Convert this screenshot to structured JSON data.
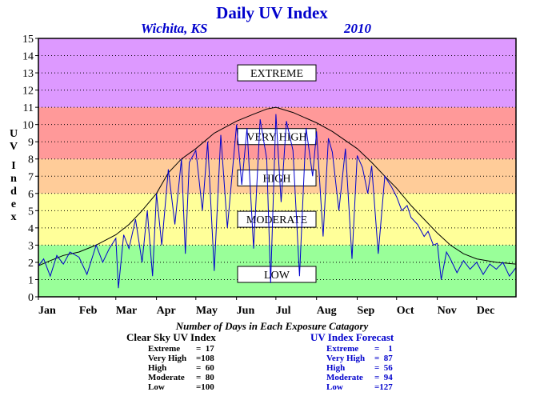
{
  "header": {
    "title": "Daily UV Index",
    "location": "Wichita, KS",
    "year": "2010"
  },
  "y_axis_label": "UV Index",
  "chart_data": {
    "type": "line",
    "ylim": [
      0,
      15
    ],
    "yticks": [
      0,
      1,
      2,
      3,
      4,
      5,
      6,
      7,
      8,
      9,
      10,
      11,
      12,
      13,
      14,
      15
    ],
    "xlim": [
      1,
      365
    ],
    "xticks": [
      {
        "day": 1,
        "label": "Jan"
      },
      {
        "day": 32,
        "label": "Feb"
      },
      {
        "day": 60,
        "label": "Mar"
      },
      {
        "day": 91,
        "label": "Apr"
      },
      {
        "day": 121,
        "label": "May"
      },
      {
        "day": 152,
        "label": "Jun"
      },
      {
        "day": 182,
        "label": "Jul"
      },
      {
        "day": 213,
        "label": "Aug"
      },
      {
        "day": 244,
        "label": "Sep"
      },
      {
        "day": 274,
        "label": "Oct"
      },
      {
        "day": 305,
        "label": "Nov"
      },
      {
        "day": 335,
        "label": "Dec"
      }
    ],
    "grid": "horizontal-dotted",
    "bands": [
      {
        "label": "LOW",
        "from": 0,
        "to": 3,
        "color": "#99ff99"
      },
      {
        "label": "MODERATE",
        "from": 3,
        "to": 6,
        "color": "#ffff99"
      },
      {
        "label": "HIGH",
        "from": 6,
        "to": 8,
        "color": "#ffcc99"
      },
      {
        "label": "VERY HIGH",
        "from": 8,
        "to": 11,
        "color": "#ff9999"
      },
      {
        "label": "EXTREME",
        "from": 11,
        "to": 15,
        "color": "#dd99ff"
      }
    ],
    "series": [
      {
        "name": "Clear Sky UV Index",
        "color": "#000000",
        "x": [
          1,
          10,
          20,
          32,
          45,
          60,
          70,
          80,
          91,
          100,
          110,
          121,
          135,
          152,
          165,
          175,
          182,
          195,
          213,
          225,
          244,
          255,
          265,
          274,
          285,
          295,
          305,
          315,
          325,
          335,
          350,
          365
        ],
        "y": [
          1.8,
          2.1,
          2.4,
          2.6,
          3.0,
          3.6,
          4.2,
          5.0,
          6.0,
          7.2,
          8.0,
          8.6,
          9.5,
          10.2,
          10.6,
          10.9,
          11.0,
          10.7,
          10.1,
          9.6,
          8.6,
          7.8,
          7.0,
          6.3,
          5.3,
          4.5,
          3.7,
          3.0,
          2.5,
          2.2,
          2.0,
          1.9
        ]
      },
      {
        "name": "UV Index Forecast",
        "color": "#0000cc",
        "x": [
          1,
          5,
          10,
          15,
          20,
          25,
          32,
          38,
          45,
          50,
          55,
          60,
          62,
          66,
          70,
          75,
          80,
          84,
          88,
          91,
          95,
          100,
          105,
          110,
          113,
          116,
          121,
          126,
          130,
          135,
          140,
          145,
          152,
          156,
          160,
          165,
          170,
          175,
          178,
          182,
          186,
          190,
          195,
          200,
          205,
          210,
          213,
          218,
          222,
          225,
          230,
          235,
          240,
          244,
          248,
          252,
          255,
          260,
          265,
          270,
          274,
          278,
          282,
          285,
          290,
          295,
          298,
          302,
          305,
          308,
          312,
          315,
          320,
          325,
          330,
          335,
          340,
          345,
          350,
          355,
          360,
          365
        ],
        "y": [
          1.8,
          2.2,
          1.2,
          2.4,
          1.9,
          2.6,
          2.3,
          1.3,
          3.0,
          2.0,
          2.8,
          3.4,
          0.5,
          3.6,
          2.8,
          4.5,
          2.0,
          5.0,
          1.2,
          6.0,
          3.0,
          7.4,
          4.2,
          8.0,
          2.5,
          7.8,
          8.5,
          5.0,
          9.0,
          1.5,
          9.4,
          4.0,
          10.0,
          6.5,
          9.8,
          2.8,
          10.3,
          8.0,
          0.8,
          10.6,
          5.5,
          10.2,
          8.5,
          1.2,
          9.8,
          7.0,
          9.6,
          3.5,
          9.2,
          8.4,
          5.0,
          8.6,
          2.2,
          8.2,
          7.5,
          6.0,
          7.6,
          2.5,
          7.0,
          6.4,
          5.8,
          5.0,
          5.3,
          4.6,
          4.2,
          3.5,
          3.8,
          3.0,
          3.1,
          1.0,
          2.6,
          2.2,
          1.4,
          2.1,
          1.6,
          2.0,
          1.3,
          1.9,
          1.6,
          2.0,
          1.2,
          1.7
        ]
      }
    ]
  },
  "summary": {
    "title": "Number of Days in Each Exposure Catagory",
    "clear_sky": {
      "heading": "Clear Sky UV Index",
      "rows": [
        {
          "label": "Extreme",
          "value": "=  17"
        },
        {
          "label": "Very High",
          "value": "=108"
        },
        {
          "label": "High",
          "value": "=  60"
        },
        {
          "label": "Moderate",
          "value": "=  80"
        },
        {
          "label": "Low",
          "value": "=100"
        }
      ]
    },
    "forecast": {
      "heading": "UV Index Forecast",
      "rows": [
        {
          "label": "Extreme",
          "value": "=    1"
        },
        {
          "label": "Very High",
          "value": "=  87"
        },
        {
          "label": "High",
          "value": "=  56"
        },
        {
          "label": "Moderate",
          "value": "=  94"
        },
        {
          "label": "Low",
          "value": "=127"
        }
      ]
    }
  }
}
